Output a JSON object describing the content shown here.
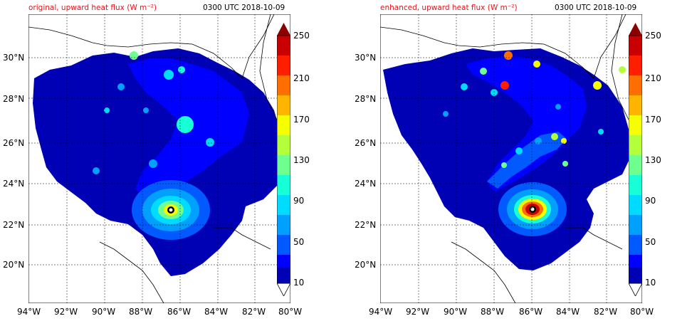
{
  "figure": {
    "panels": [
      {
        "title_left": "original, upward heat flux (W m⁻²)",
        "title_right": "0300 UTC 2018-10-09",
        "colorbar": {
          "ticks": [
            "250",
            "210",
            "170",
            "130",
            "90",
            "50",
            "10"
          ]
        },
        "y_ticks": [
          "30°N",
          "28°N",
          "26°N",
          "24°N",
          "22°N",
          "20°N"
        ],
        "x_ticks": [
          "94°W",
          "92°W",
          "90°W",
          "88°W",
          "86°W",
          "84°W",
          "82°W",
          "80°W"
        ]
      },
      {
        "title_left": "enhanced, upward heat flux (W m⁻²)",
        "title_right": "0300 UTC 2018-10-09",
        "colorbar": {
          "ticks": [
            "250",
            "210",
            "170",
            "130",
            "90",
            "50",
            "10"
          ]
        },
        "y_ticks": [
          "30°N",
          "28°N",
          "26°N",
          "24°N",
          "22°N",
          "20°N"
        ],
        "x_ticks": [
          "94°W",
          "92°W",
          "90°W",
          "88°W",
          "86°W",
          "84°W",
          "82°W",
          "80°W"
        ]
      }
    ],
    "colors": {
      "title_left": "#e8141b",
      "colorbar_scale": [
        "#0000b4",
        "#0000ff",
        "#005aff",
        "#00a0ff",
        "#00dcff",
        "#18ffd7",
        "#6eff8e",
        "#b4ff3c",
        "#f5ff00",
        "#ffb400",
        "#ff6e00",
        "#ff1e00",
        "#c80000",
        "#8b0000"
      ]
    }
  }
}
